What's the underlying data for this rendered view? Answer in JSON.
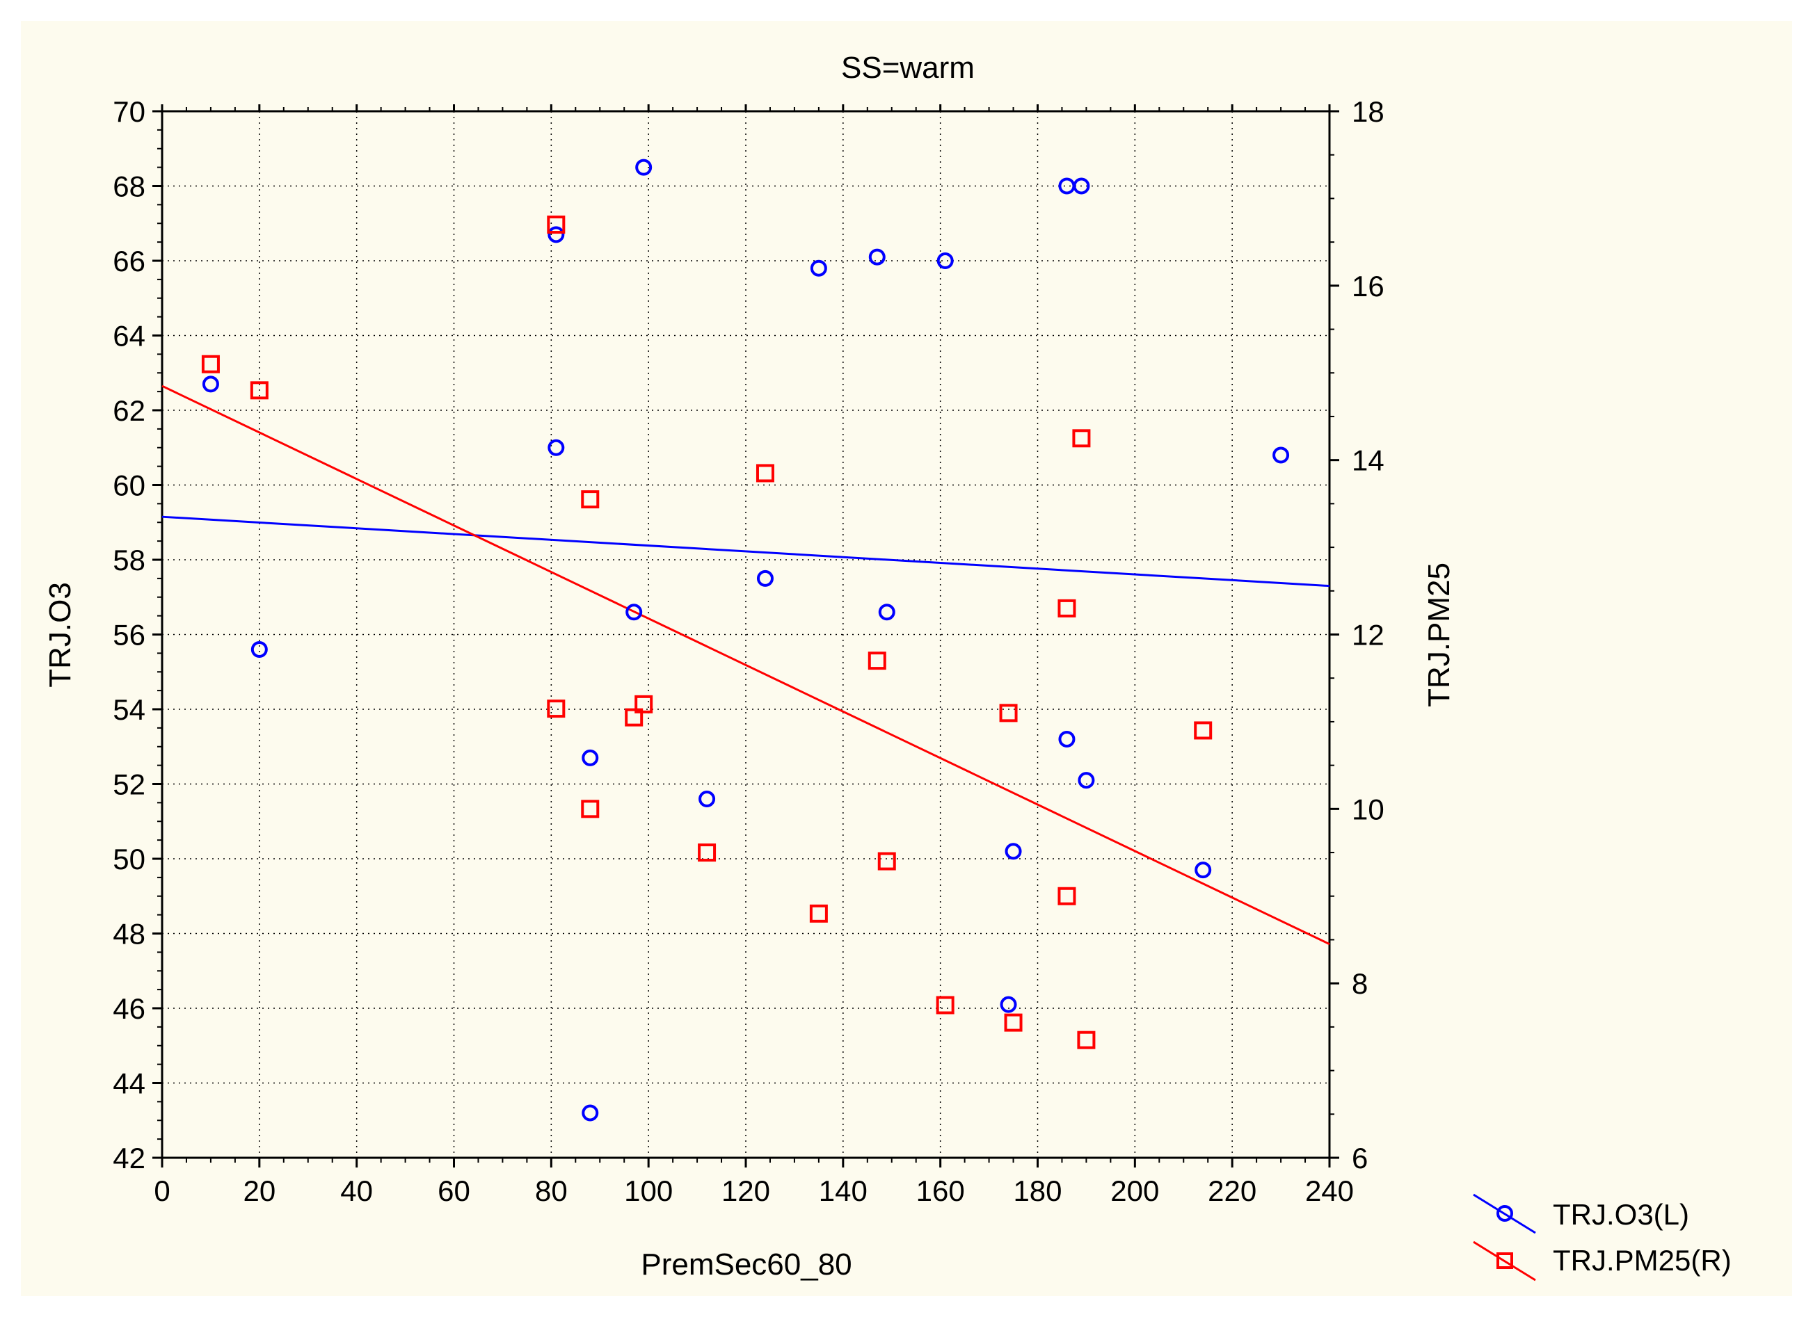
{
  "chart_data": {
    "type": "scatter",
    "title": "SS=warm",
    "xlabel": "PremSec60_80",
    "ylabel_left": "TRJ.O3",
    "ylabel_right": "TRJ.PM25",
    "xlim": [
      0,
      240
    ],
    "ylim_left": [
      42,
      70
    ],
    "ylim_right": [
      6,
      18
    ],
    "x_ticks": [
      0,
      20,
      40,
      60,
      80,
      100,
      120,
      140,
      160,
      180,
      200,
      220,
      240
    ],
    "y_left_ticks": [
      42,
      44,
      46,
      48,
      50,
      52,
      54,
      56,
      58,
      60,
      62,
      64,
      66,
      68,
      70
    ],
    "y_right_ticks": [
      6,
      8,
      10,
      12,
      14,
      16,
      18
    ],
    "legend_position": "bottom-right",
    "series": [
      {
        "name": "TRJ.O3(L)",
        "axis": "left",
        "marker": "circle",
        "color": "#0000ff",
        "points": [
          [
            10,
            62.7
          ],
          [
            20,
            55.6
          ],
          [
            81,
            66.7
          ],
          [
            81,
            61.0
          ],
          [
            88,
            52.7
          ],
          [
            88,
            43.2
          ],
          [
            97,
            56.6
          ],
          [
            99,
            68.5
          ],
          [
            112,
            51.6
          ],
          [
            124,
            57.5
          ],
          [
            135,
            65.8
          ],
          [
            147,
            66.1
          ],
          [
            149,
            56.6
          ],
          [
            161,
            66.0
          ],
          [
            174,
            46.1
          ],
          [
            175,
            50.2
          ],
          [
            186,
            68.0
          ],
          [
            186,
            53.2
          ],
          [
            189,
            68.0
          ],
          [
            190,
            52.1
          ],
          [
            214,
            49.7
          ],
          [
            230,
            60.8
          ]
        ],
        "fit": [
          [
            0,
            59.15
          ],
          [
            240,
            57.3
          ]
        ]
      },
      {
        "name": "TRJ.PM25(R)",
        "axis": "right",
        "marker": "square",
        "color": "#ff0000",
        "points": [
          [
            10,
            15.1
          ],
          [
            20,
            14.8
          ],
          [
            81,
            16.7
          ],
          [
            81,
            11.15
          ],
          [
            88,
            13.55
          ],
          [
            88,
            10.0
          ],
          [
            97,
            11.05
          ],
          [
            99,
            11.2
          ],
          [
            112,
            9.5
          ],
          [
            124,
            13.85
          ],
          [
            135,
            8.8
          ],
          [
            147,
            11.7
          ],
          [
            149,
            9.4
          ],
          [
            161,
            7.75
          ],
          [
            174,
            11.1
          ],
          [
            175,
            7.55
          ],
          [
            186,
            12.3
          ],
          [
            186,
            9.0
          ],
          [
            189,
            14.25
          ],
          [
            190,
            7.35
          ],
          [
            214,
            10.9
          ]
        ],
        "fit": [
          [
            0,
            14.85
          ],
          [
            240,
            8.45
          ]
        ]
      }
    ]
  }
}
